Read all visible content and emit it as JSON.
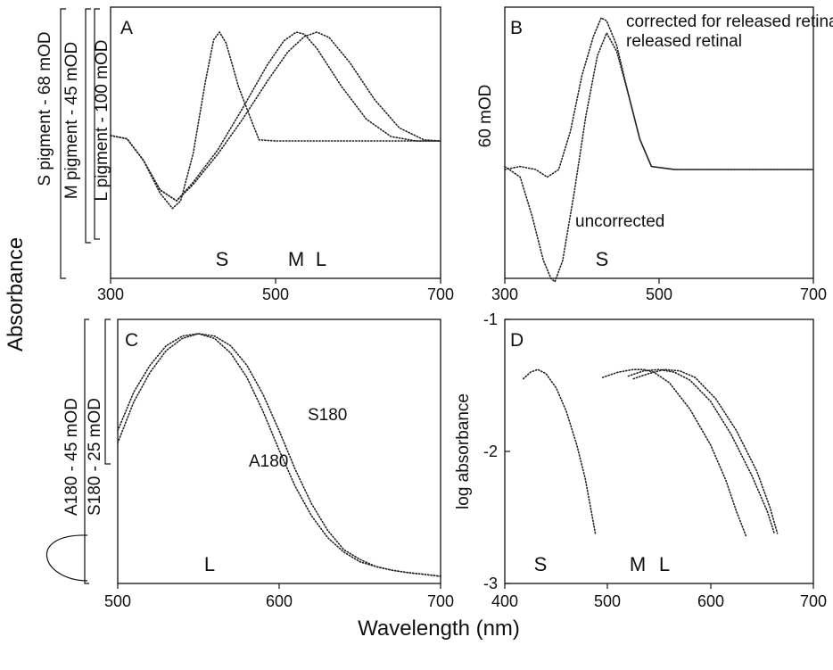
{
  "figure": {
    "y_axis_label": "Absorbance",
    "x_axis_label": "Wavelength (nm)"
  },
  "chart_data": [
    {
      "type": "line",
      "panel": "A",
      "xlim": [
        300,
        700
      ],
      "x_ticks": [
        "300",
        "500",
        "700"
      ],
      "scale_bars": [
        "S pigment - 68 mOD",
        "M pigment - 45 mOD",
        "L pigment - 100 mOD"
      ],
      "markers": [
        "S",
        "M",
        "L"
      ],
      "series": [
        {
          "x": [
            300,
            320,
            340,
            360,
            375,
            385,
            400,
            415,
            425,
            432,
            440,
            455,
            470,
            480,
            500,
            560,
            620,
            680,
            700
          ],
          "y": [
            0.05,
            0.02,
            -0.18,
            -0.48,
            -0.62,
            -0.55,
            -0.12,
            0.55,
            0.93,
            1.0,
            0.9,
            0.5,
            0.2,
            0.01,
            0.0,
            0.0,
            0.0,
            0.0,
            0.0
          ]
        },
        {
          "x": [
            300,
            320,
            340,
            360,
            380,
            400,
            430,
            460,
            490,
            510,
            525,
            535,
            550,
            580,
            610,
            640,
            670,
            700
          ],
          "y": [
            0.05,
            0.02,
            -0.18,
            -0.45,
            -0.55,
            -0.38,
            -0.08,
            0.3,
            0.7,
            0.92,
            1.0,
            0.98,
            0.85,
            0.5,
            0.2,
            0.04,
            0.0,
            0.0
          ]
        },
        {
          "x": [
            300,
            320,
            340,
            360,
            380,
            400,
            430,
            460,
            490,
            515,
            535,
            550,
            565,
            590,
            620,
            650,
            680,
            700
          ],
          "y": [
            0.05,
            0.02,
            -0.18,
            -0.45,
            -0.55,
            -0.4,
            -0.12,
            0.2,
            0.55,
            0.82,
            0.96,
            1.0,
            0.95,
            0.72,
            0.38,
            0.12,
            0.01,
            0.0
          ]
        }
      ]
    },
    {
      "type": "line",
      "panel": "B",
      "xlim": [
        300,
        700
      ],
      "x_ticks": [
        "300",
        "500",
        "700"
      ],
      "scale_bars": [
        "60 mOD"
      ],
      "markers": [
        "S"
      ],
      "annotations": [
        "corrected for released retinal",
        "uncorrected"
      ],
      "series": [
        {
          "name": "corrected for released retinal",
          "x": [
            300,
            320,
            340,
            355,
            370,
            385,
            400,
            415,
            425,
            432,
            445,
            460,
            475,
            490,
            520,
            600,
            700
          ],
          "y": [
            0.0,
            0.02,
            0.0,
            -0.05,
            0.0,
            0.25,
            0.62,
            0.88,
            1.0,
            0.98,
            0.82,
            0.5,
            0.2,
            0.02,
            0.0,
            0.0,
            0.0
          ]
        },
        {
          "name": "uncorrected",
          "x": [
            300,
            320,
            335,
            350,
            360,
            365,
            375,
            390,
            405,
            420,
            432,
            445,
            460,
            475,
            490,
            520,
            600,
            700
          ],
          "y": [
            0.02,
            -0.05,
            -0.3,
            -0.6,
            -0.72,
            -0.74,
            -0.6,
            -0.15,
            0.35,
            0.75,
            0.9,
            0.78,
            0.5,
            0.2,
            0.02,
            0.0,
            0.0,
            0.0
          ]
        }
      ]
    },
    {
      "type": "line",
      "panel": "C",
      "xlim": [
        500,
        700
      ],
      "x_ticks": [
        "500",
        "600",
        "700"
      ],
      "scale_bars": [
        "A180 - 45 mOD",
        "S180 - 25 mOD"
      ],
      "markers": [
        "L"
      ],
      "labels": [
        "S180",
        "A180"
      ],
      "series": [
        {
          "name": "A180",
          "x": [
            500,
            510,
            520,
            530,
            540,
            550,
            560,
            570,
            580,
            590,
            600,
            610,
            620,
            630,
            640,
            650,
            660,
            670,
            680,
            690,
            700
          ],
          "y": [
            0.6,
            0.76,
            0.87,
            0.95,
            0.99,
            1.0,
            0.98,
            0.92,
            0.82,
            0.68,
            0.52,
            0.37,
            0.25,
            0.16,
            0.1,
            0.06,
            0.04,
            0.025,
            0.015,
            0.008,
            0.0
          ]
        },
        {
          "name": "S180",
          "x": [
            500,
            510,
            520,
            530,
            540,
            550,
            560,
            570,
            580,
            590,
            600,
            610,
            620,
            630,
            640,
            650,
            660,
            670,
            680,
            690,
            700
          ],
          "y": [
            0.55,
            0.72,
            0.84,
            0.93,
            0.98,
            1.0,
            0.99,
            0.95,
            0.87,
            0.75,
            0.6,
            0.44,
            0.3,
            0.19,
            0.11,
            0.07,
            0.04,
            0.025,
            0.015,
            0.008,
            0.0
          ]
        }
      ]
    },
    {
      "type": "line",
      "panel": "D",
      "xlim": [
        400,
        700
      ],
      "ylim": [
        -3,
        -1
      ],
      "x_ticks": [
        "400",
        "500",
        "600",
        "700"
      ],
      "y_ticks": [
        "-1",
        "-2",
        "-3"
      ],
      "ylabel": "log absorbance",
      "markers": [
        "S",
        "M",
        "L"
      ],
      "series": [
        {
          "x": [
            418,
            425,
            432,
            440,
            450,
            460,
            470,
            478,
            484,
            488
          ],
          "y": [
            -1.45,
            -1.4,
            -1.38,
            -1.41,
            -1.52,
            -1.7,
            -1.95,
            -2.2,
            -2.45,
            -2.62
          ]
        },
        {
          "x": [
            495,
            510,
            525,
            535,
            545,
            560,
            580,
            600,
            615,
            625,
            635
          ],
          "y": [
            -1.44,
            -1.4,
            -1.38,
            -1.38,
            -1.4,
            -1.48,
            -1.68,
            -1.95,
            -2.22,
            -2.45,
            -2.65
          ]
        },
        {
          "x": [
            520,
            535,
            550,
            565,
            580,
            600,
            620,
            640,
            655,
            662
          ],
          "y": [
            -1.43,
            -1.39,
            -1.38,
            -1.4,
            -1.46,
            -1.62,
            -1.87,
            -2.18,
            -2.45,
            -2.62
          ]
        },
        {
          "x": [
            525,
            540,
            555,
            570,
            585,
            605,
            625,
            645,
            658,
            665
          ],
          "y": [
            -1.45,
            -1.41,
            -1.38,
            -1.39,
            -1.44,
            -1.6,
            -1.84,
            -2.15,
            -2.43,
            -2.62
          ]
        }
      ]
    }
  ]
}
